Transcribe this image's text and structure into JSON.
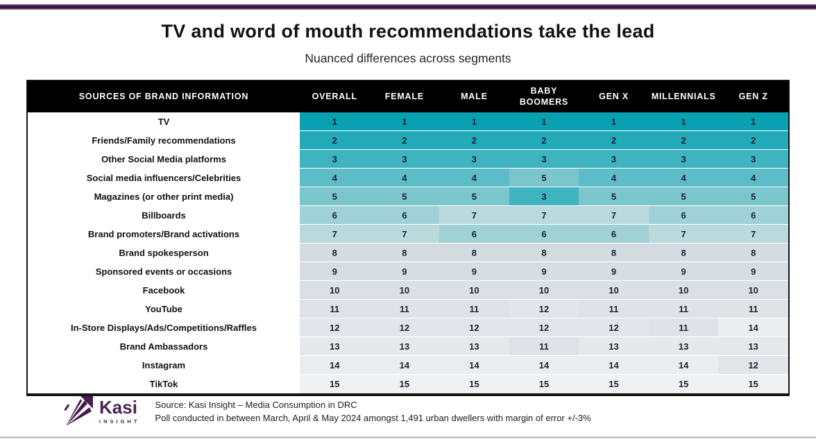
{
  "page": {
    "title": "TV and word of mouth recommendations take the lead",
    "subtitle": "Nuanced differences across segments"
  },
  "chart_data": {
    "type": "heatmap",
    "title": "TV and word of mouth recommendations take the lead",
    "subtitle": "Nuanced differences across segments",
    "row_header": "SOURCES OF BRAND INFORMATION",
    "columns": [
      "OVERALL",
      "FEMALE",
      "MALE",
      "BABY BOOMERS",
      "GEN X",
      "MILLENNIALS",
      "GEN Z"
    ],
    "rows": [
      "TV",
      "Friends/Family recommendations",
      "Other Social Media platforms",
      "Social media influencers/Celebrities",
      "Magazines (or other print media)",
      "Billboards",
      "Brand promoters/Brand activations",
      "Brand spokesperson",
      "Sponsored events or occasions",
      "Facebook",
      "YouTube",
      "In-Store Displays/Ads/Competitions/Raffles",
      "Brand Ambassadors",
      "Instagram",
      "TikTok"
    ],
    "values": [
      [
        1,
        1,
        1,
        1,
        1,
        1,
        1
      ],
      [
        2,
        2,
        2,
        2,
        2,
        2,
        2
      ],
      [
        3,
        3,
        3,
        3,
        3,
        3,
        3
      ],
      [
        4,
        4,
        4,
        5,
        4,
        4,
        4
      ],
      [
        5,
        5,
        5,
        3,
        5,
        5,
        5
      ],
      [
        6,
        6,
        7,
        7,
        7,
        6,
        6
      ],
      [
        7,
        7,
        6,
        6,
        6,
        7,
        7
      ],
      [
        8,
        8,
        8,
        8,
        8,
        8,
        8
      ],
      [
        9,
        9,
        9,
        9,
        9,
        9,
        9
      ],
      [
        10,
        10,
        10,
        10,
        10,
        10,
        10
      ],
      [
        11,
        11,
        11,
        12,
        11,
        11,
        11
      ],
      [
        12,
        12,
        12,
        12,
        12,
        11,
        14
      ],
      [
        13,
        13,
        13,
        11,
        13,
        13,
        13
      ],
      [
        14,
        14,
        14,
        14,
        14,
        14,
        12
      ],
      [
        15,
        15,
        15,
        15,
        15,
        15,
        15
      ]
    ],
    "value_range": [
      1,
      15
    ],
    "rank_palette": [
      "#09a1b1",
      "#23aab8",
      "#40b3c0",
      "#5cbcc8",
      "#7bc6cd",
      "#9fd1d6",
      "#bad9dd",
      "#d4dce2",
      "#d7dee3",
      "#dbe0e5",
      "#dfe3e7",
      "#e2e5e9",
      "#e6e8eb",
      "#eaeced",
      "#f0f1f2"
    ]
  },
  "footer": {
    "logo": {
      "brand": "Kasi",
      "sub": "INSIGHT"
    },
    "source_line1": "Source: Kasi Insight – Media Consumption in DRC",
    "source_line2": "Poll conducted  in between March, April & May 2024 amongst 1,491 urban dwellers with margin of error +/-3%"
  },
  "colors": {
    "accent_purple": "#4b2253",
    "top_bar_purple": "#3c1243",
    "header_bg": "#000000",
    "bottom_line_gray": "#c9c9cd"
  }
}
